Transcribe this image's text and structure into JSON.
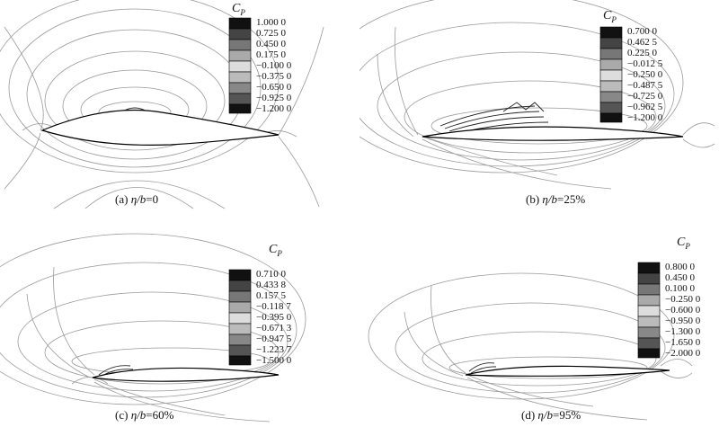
{
  "panels": [
    {
      "id": "a",
      "caption_prefix": "(a) ",
      "caption_var": "η/b",
      "caption_value": "=0",
      "legend_title": "C",
      "legend_sub": "P",
      "legend_values": [
        "1.000 0",
        "0.725 0",
        "0.450 0",
        "0.175 0",
        "−0.100 0",
        "−0.375 0",
        "−0.650 0",
        "−0.925 0",
        "−1.200 0"
      ]
    },
    {
      "id": "b",
      "caption_prefix": "(b) ",
      "caption_var": "η/b",
      "caption_value": "=25%",
      "legend_title": "C",
      "legend_sub": "P",
      "legend_values": [
        "0.700 0",
        "0.462 5",
        "0.225 0",
        "−0.012 5",
        "−0.250 0",
        "−0.487 5",
        "−0.725 0",
        "−0.962 5",
        "−1.200 0"
      ]
    },
    {
      "id": "c",
      "caption_prefix": "(c) ",
      "caption_var": "η/b",
      "caption_value": "=60%",
      "legend_title": "C",
      "legend_sub": "P",
      "legend_values": [
        "0.710 0",
        "0.433 8",
        "0.157 5",
        "−0.118 7",
        "−0.395 0",
        "−0.671 3",
        "−0.947 5",
        "−1.223 7",
        "−1.500 0"
      ]
    },
    {
      "id": "d",
      "caption_prefix": "(d) ",
      "caption_var": "η/b",
      "caption_value": "=95%",
      "legend_title": "C",
      "legend_sub": "P",
      "legend_values": [
        "0.800 0",
        "0.450 0",
        "0.100 0",
        "−0.250 0",
        "−0.600 0",
        "−0.950 0",
        "−1.300 0",
        "−1.650 0",
        "−2.000 0"
      ]
    }
  ]
}
